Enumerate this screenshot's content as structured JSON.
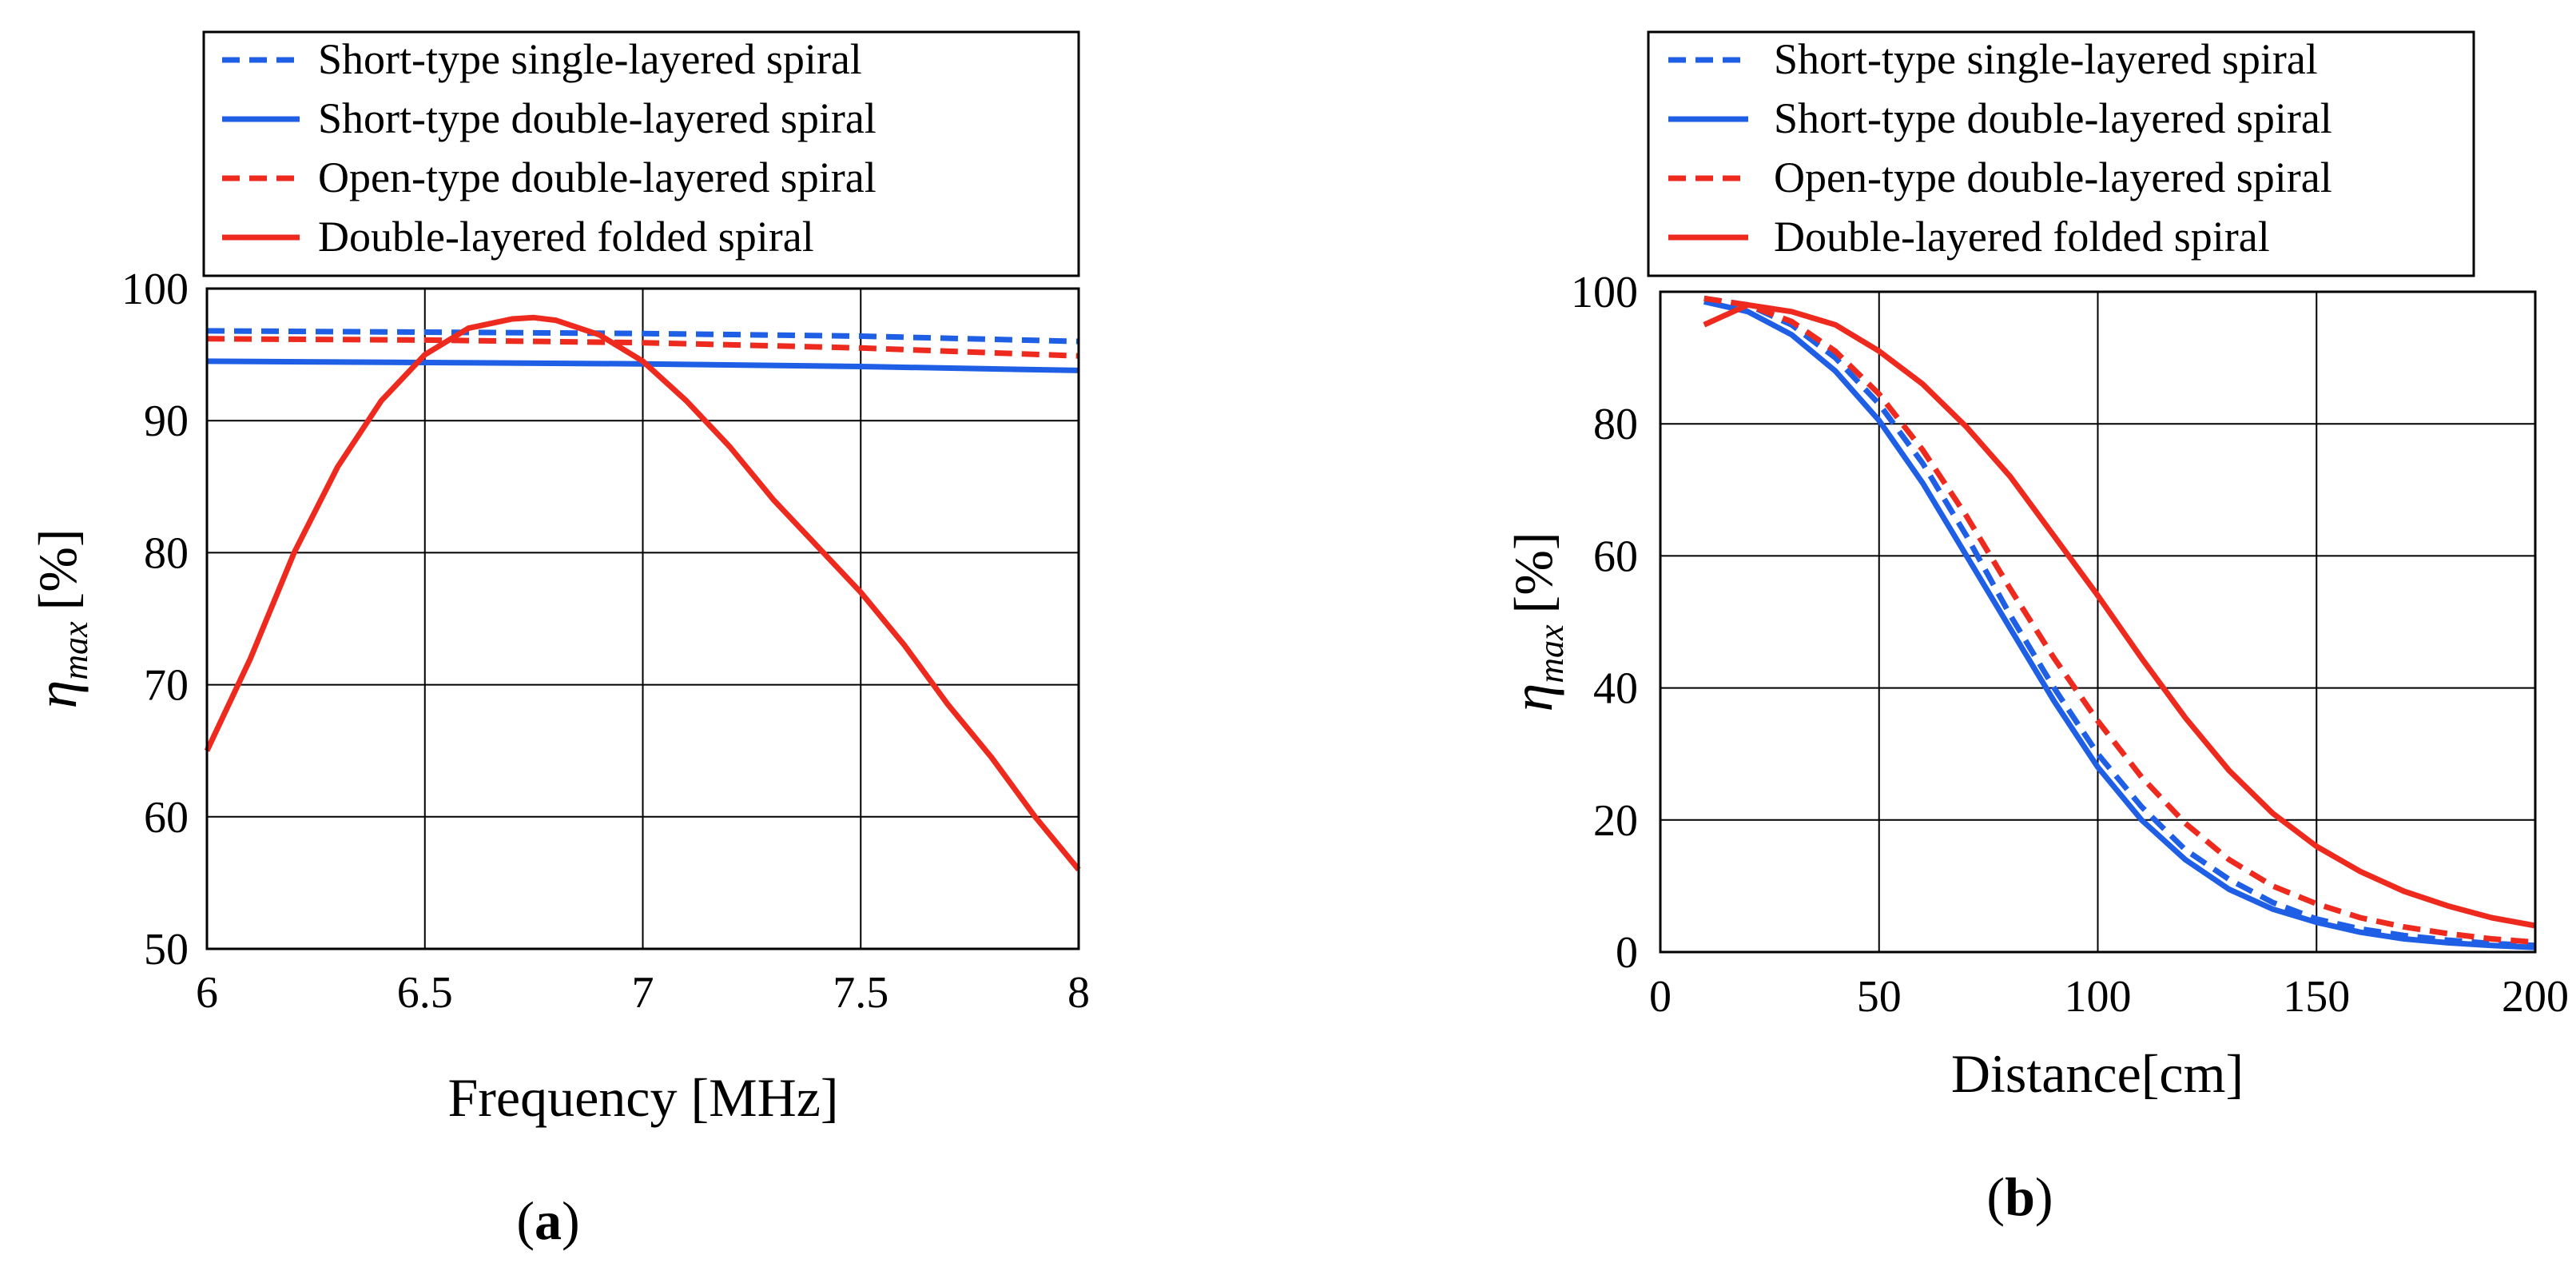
{
  "chart_data": [
    {
      "type": "line",
      "panel_label": "a",
      "xlabel": "Frequency [MHz]",
      "ylabel": {
        "symbol": "η",
        "subscript": "max",
        "unit": "[%]"
      },
      "xlim": [
        6,
        8
      ],
      "ylim": [
        50,
        100
      ],
      "xticks": [
        6,
        6.5,
        7,
        7.5,
        8
      ],
      "xtick_labels": [
        "6",
        "6.5",
        "7",
        "7.5",
        "8"
      ],
      "yticks": [
        50,
        60,
        70,
        80,
        90,
        100
      ],
      "ytick_labels": [
        "50",
        "60",
        "70",
        "80",
        "90",
        "100"
      ],
      "grid": true,
      "legend_position": "top",
      "series": [
        {
          "name": "Short-type single-layered spiral",
          "color": "#1f5fe6",
          "dashed": true,
          "x": [
            6,
            6.5,
            7,
            7.5,
            8
          ],
          "y": [
            96.8,
            96.7,
            96.6,
            96.4,
            96.0
          ]
        },
        {
          "name": "Short-type double-layered spiral",
          "color": "#1f5fe6",
          "dashed": false,
          "x": [
            6,
            6.5,
            7,
            7.5,
            8
          ],
          "y": [
            94.5,
            94.4,
            94.3,
            94.1,
            93.8
          ]
        },
        {
          "name": "Open-type double-layered spiral",
          "color": "#ee2a1f",
          "dashed": true,
          "x": [
            6,
            6.5,
            7,
            7.5,
            8
          ],
          "y": [
            96.2,
            96.1,
            95.9,
            95.5,
            94.9
          ]
        },
        {
          "name": "Double-layered folded spiral",
          "color": "#ee2a1f",
          "dashed": false,
          "x": [
            6,
            6.1,
            6.2,
            6.3,
            6.4,
            6.5,
            6.6,
            6.7,
            6.75,
            6.8,
            6.9,
            7.0,
            7.1,
            7.2,
            7.3,
            7.4,
            7.5,
            7.6,
            7.7,
            7.8,
            7.9,
            8.0
          ],
          "y": [
            65,
            72,
            80,
            86.5,
            91.5,
            95,
            97,
            97.7,
            97.8,
            97.6,
            96.5,
            94.5,
            91.5,
            88,
            84,
            80.5,
            77,
            73,
            68.5,
            64.5,
            60,
            56
          ]
        }
      ]
    },
    {
      "type": "line",
      "panel_label": "b",
      "xlabel": "Distance[cm]",
      "ylabel": {
        "symbol": "η",
        "subscript": "max",
        "unit": "[%]"
      },
      "xlim": [
        0,
        200
      ],
      "ylim": [
        0,
        100
      ],
      "xticks": [
        0,
        50,
        100,
        150,
        200
      ],
      "xtick_labels": [
        "0",
        "50",
        "100",
        "150",
        "200"
      ],
      "yticks": [
        0,
        20,
        40,
        60,
        80,
        100
      ],
      "ytick_labels": [
        "0",
        "20",
        "40",
        "60",
        "80",
        "100"
      ],
      "grid": true,
      "legend_position": "top",
      "series": [
        {
          "name": "Short-type single-layered spiral",
          "color": "#1f5fe6",
          "dashed": true,
          "x": [
            10,
            20,
            30,
            40,
            50,
            60,
            70,
            80,
            90,
            100,
            110,
            120,
            130,
            140,
            150,
            160,
            170,
            180,
            190,
            200
          ],
          "y": [
            99,
            98,
            95,
            90,
            83,
            74,
            63,
            51,
            40,
            30,
            22,
            15.5,
            11,
            7.5,
            5,
            3.5,
            2.5,
            1.8,
            1.3,
            1
          ]
        },
        {
          "name": "Short-type double-layered spiral",
          "color": "#1f5fe6",
          "dashed": false,
          "x": [
            10,
            20,
            30,
            40,
            50,
            60,
            70,
            80,
            90,
            100,
            110,
            120,
            130,
            140,
            150,
            160,
            170,
            180,
            190,
            200
          ],
          "y": [
            98.5,
            97,
            93.5,
            88,
            80.5,
            71,
            60,
            49,
            38,
            28,
            20,
            14,
            9.5,
            6.5,
            4.5,
            3,
            2,
            1.4,
            1,
            0.7
          ]
        },
        {
          "name": "Open-type double-layered spiral",
          "color": "#ee2a1f",
          "dashed": true,
          "x": [
            10,
            20,
            30,
            40,
            50,
            60,
            70,
            80,
            90,
            100,
            110,
            120,
            130,
            140,
            150,
            160,
            170,
            180,
            190,
            200
          ],
          "y": [
            99,
            98,
            95.5,
            91,
            84.5,
            76,
            66,
            55,
            44.5,
            35,
            26.5,
            19.5,
            14,
            10,
            7.3,
            5.2,
            3.8,
            2.8,
            2,
            1.5
          ]
        },
        {
          "name": "Double-layered folded spiral",
          "color": "#ee2a1f",
          "dashed": false,
          "x": [
            10,
            20,
            30,
            40,
            50,
            60,
            70,
            80,
            90,
            100,
            110,
            120,
            130,
            140,
            150,
            160,
            170,
            180,
            190,
            200
          ],
          "y": [
            95,
            98,
            97,
            95,
            91,
            86,
            79.5,
            72,
            63,
            54,
            44.5,
            35.5,
            27.5,
            21,
            16,
            12.2,
            9.2,
            7,
            5.2,
            4
          ]
        }
      ]
    }
  ],
  "captions": [
    "a",
    "b"
  ]
}
